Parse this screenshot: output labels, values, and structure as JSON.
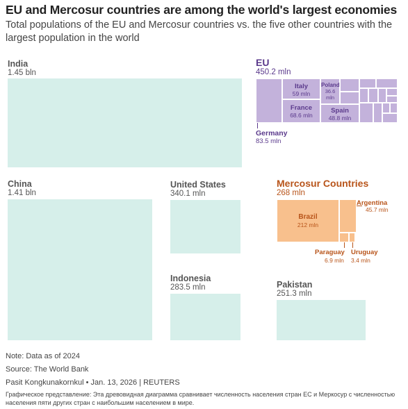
{
  "header": {
    "title": "EU and Mercosur countries are among the world's largest economies",
    "subtitle": "Total populations of the EU and Mercosur countries vs. the five other countries with the largest population in the world"
  },
  "chart_data": {
    "type": "treemap",
    "countries": [
      {
        "name": "India",
        "value_label": "1.45 bln",
        "population_mln": 1450
      },
      {
        "name": "China",
        "value_label": "1.41 bln",
        "population_mln": 1410
      },
      {
        "name": "United States",
        "value_label": "340.1 mln",
        "population_mln": 340.1
      },
      {
        "name": "Indonesia",
        "value_label": "283.5 mln",
        "population_mln": 283.5
      },
      {
        "name": "Pakistan",
        "value_label": "251.3 mln",
        "population_mln": 251.3
      }
    ],
    "eu": {
      "name": "EU",
      "value_label": "450.2 mln",
      "total_mln": 450.2,
      "members": [
        {
          "name": "Germany",
          "value_label": "83.5 mln",
          "population_mln": 83.5
        },
        {
          "name": "France",
          "value_label": "68.6 mln",
          "population_mln": 68.6
        },
        {
          "name": "Italy",
          "value_label": "59 mln",
          "population_mln": 59
        },
        {
          "name": "Spain",
          "value_label": "48.8 mln",
          "population_mln": 48.8
        },
        {
          "name": "Poland",
          "value_label": "36.6 mln",
          "population_mln": 36.6
        }
      ]
    },
    "mercosur": {
      "name": "Mercosur Countries",
      "value_label": "268 mln",
      "total_mln": 268,
      "members": [
        {
          "name": "Brazil",
          "value_label": "212 mln",
          "population_mln": 212
        },
        {
          "name": "Argentina",
          "value_label": "45.7 mln",
          "population_mln": 45.7
        },
        {
          "name": "Paraguay",
          "value_label": "6.9 mln",
          "population_mln": 6.9
        },
        {
          "name": "Uruguay",
          "value_label": "3.4 mln",
          "population_mln": 3.4
        }
      ]
    }
  },
  "footer": {
    "note": "Note: Data as of 2024",
    "source": "Source: The World Bank",
    "credit": "Pasit Kongkunakornkul • Jan. 13, 2026 | REUTERS",
    "description": "Графическое представление: Эта древовидная диаграмма сравнивает численность населения стран ЕС и Меркосур с численностью населения пяти других стран с наибольшим населением в мире."
  }
}
